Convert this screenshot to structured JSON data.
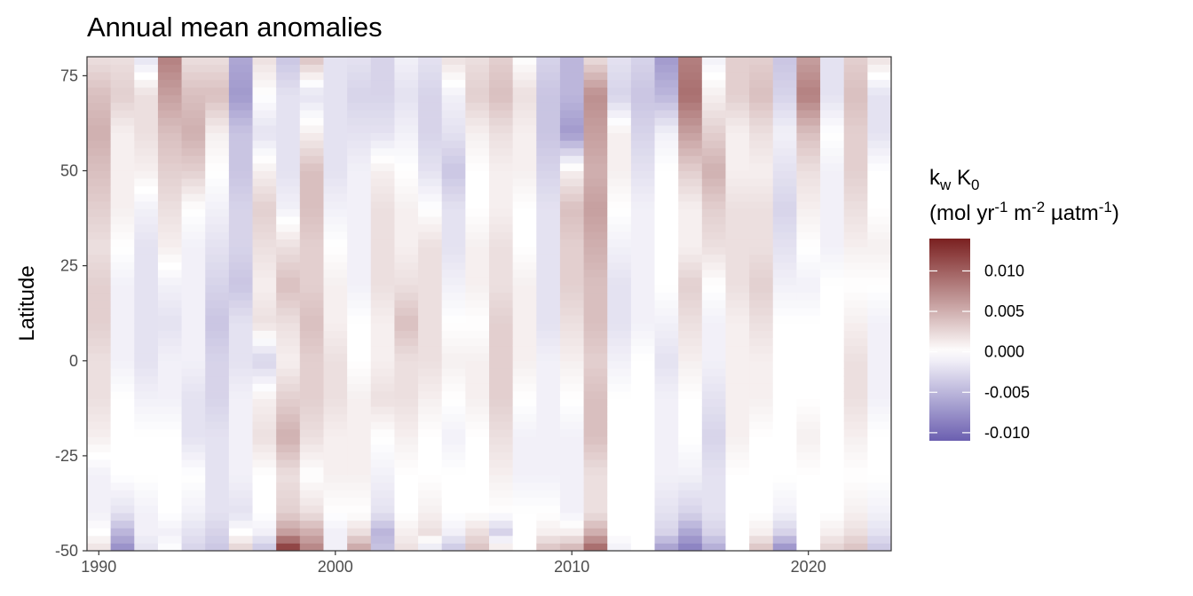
{
  "chart_data": {
    "type": "heatmap",
    "title": "Annual mean anomalies",
    "xlabel": "",
    "ylabel": "Latitude",
    "xlim": [
      1989.5,
      2023.5
    ],
    "ylim": [
      -50,
      80
    ],
    "x_ticks": [
      "1990",
      "2000",
      "2010",
      "2020"
    ],
    "y_ticks": [
      "75",
      "50",
      "25",
      "0",
      "-25",
      "-50"
    ],
    "years": [
      1990,
      1991,
      1992,
      1993,
      1994,
      1995,
      1996,
      1997,
      1998,
      1999,
      2000,
      2001,
      2002,
      2003,
      2004,
      2005,
      2006,
      2007,
      2008,
      2009,
      2010,
      2011,
      2012,
      2013,
      2014,
      2015,
      2016,
      2017,
      2018,
      2019,
      2020,
      2021,
      2022,
      2023
    ],
    "lat_knots": [
      -50,
      -45,
      -40,
      -30,
      -20,
      -10,
      0,
      10,
      20,
      30,
      40,
      50,
      60,
      70,
      80
    ],
    "anomaly_profiles": [
      [
        0.002,
        0.0,
        -0.001,
        -0.001,
        0.001,
        0.002,
        0.002,
        0.003,
        0.003,
        0.002,
        0.003,
        0.004,
        0.005,
        0.004,
        0.002
      ],
      [
        -0.008,
        -0.005,
        -0.002,
        0.0,
        0.0,
        0.0,
        -0.001,
        -0.001,
        -0.001,
        0.0,
        0.001,
        0.001,
        0.001,
        0.003,
        0.002
      ],
      [
        -0.002,
        -0.001,
        -0.001,
        0.0,
        0.0,
        -0.001,
        -0.002,
        -0.002,
        -0.002,
        -0.002,
        -0.001,
        0.001,
        0.002,
        0.002,
        -0.002
      ],
      [
        0.0,
        -0.001,
        0.0,
        0.0,
        0.0,
        -0.001,
        -0.001,
        -0.002,
        -0.001,
        0.001,
        0.002,
        0.003,
        0.004,
        0.006,
        0.008
      ],
      [
        -0.003,
        -0.002,
        -0.001,
        0.0,
        -0.002,
        -0.002,
        -0.001,
        -0.001,
        -0.001,
        -0.001,
        0.0,
        0.003,
        0.005,
        0.004,
        0.002
      ],
      [
        -0.004,
        -0.003,
        -0.002,
        -0.002,
        -0.002,
        -0.003,
        -0.003,
        -0.004,
        -0.003,
        -0.002,
        -0.001,
        0.0,
        0.001,
        0.004,
        0.002
      ],
      [
        0.003,
        0.0,
        -0.002,
        -0.001,
        -0.001,
        -0.001,
        -0.002,
        -0.002,
        -0.004,
        -0.003,
        -0.003,
        -0.004,
        -0.004,
        -0.007,
        -0.006
      ],
      [
        -0.004,
        -0.001,
        0.0,
        0.0,
        0.002,
        0.001,
        -0.003,
        0.002,
        0.001,
        0.002,
        0.003,
        0.001,
        -0.002,
        0.0,
        0.002
      ],
      [
        0.013,
        0.006,
        0.003,
        0.002,
        0.005,
        0.003,
        0.001,
        0.002,
        0.004,
        0.002,
        -0.001,
        -0.002,
        -0.002,
        -0.002,
        -0.004
      ],
      [
        0.008,
        0.005,
        0.002,
        0.0,
        0.002,
        0.003,
        0.003,
        0.004,
        0.003,
        0.003,
        0.004,
        0.004,
        0.001,
        -0.002,
        0.004
      ],
      [
        -0.001,
        -0.001,
        0.0,
        0.001,
        0.001,
        0.002,
        0.002,
        0.001,
        0.001,
        0.0,
        -0.001,
        -0.002,
        -0.002,
        -0.002,
        -0.002
      ],
      [
        0.006,
        0.002,
        0.0,
        0.001,
        0.001,
        0.001,
        0.0,
        0.0,
        -0.001,
        -0.001,
        -0.001,
        -0.001,
        -0.002,
        -0.003,
        -0.002
      ],
      [
        -0.004,
        -0.005,
        -0.002,
        -0.001,
        0.0,
        0.002,
        0.001,
        0.001,
        0.002,
        0.002,
        0.002,
        0.001,
        -0.002,
        -0.003,
        -0.003
      ],
      [
        0.002,
        0.001,
        0.0,
        0.0,
        0.001,
        0.002,
        0.002,
        0.004,
        0.002,
        0.001,
        0.001,
        0.0,
        -0.001,
        -0.002,
        -0.001
      ],
      [
        -0.002,
        0.002,
        0.001,
        0.0,
        0.0,
        0.001,
        0.002,
        0.002,
        0.002,
        0.002,
        0.0,
        -0.002,
        -0.003,
        -0.003,
        -0.002
      ],
      [
        -0.004,
        -0.001,
        0.0,
        0.0,
        -0.001,
        0.0,
        0.001,
        0.0,
        -0.001,
        -0.002,
        -0.002,
        -0.004,
        -0.002,
        -0.001,
        0.002
      ],
      [
        0.004,
        0.002,
        0.0,
        0.0,
        0.0,
        0.001,
        0.001,
        0.0,
        0.001,
        0.001,
        0.0,
        0.0,
        0.001,
        0.003,
        0.002
      ],
      [
        0.002,
        -0.003,
        0.0,
        0.001,
        0.002,
        0.003,
        0.003,
        0.003,
        0.002,
        0.002,
        0.001,
        0.001,
        0.002,
        0.004,
        0.003
      ],
      [
        0.0,
        0.0,
        0.0,
        -0.001,
        -0.001,
        0.0,
        0.001,
        0.001,
        0.001,
        0.0,
        0.0,
        0.001,
        0.001,
        0.002,
        0.0
      ],
      [
        0.004,
        0.001,
        0.0,
        -0.001,
        -0.001,
        -0.001,
        -0.001,
        -0.002,
        -0.002,
        -0.002,
        -0.002,
        -0.003,
        -0.004,
        -0.004,
        -0.003
      ],
      [
        0.005,
        0.001,
        -0.001,
        -0.001,
        -0.001,
        0.0,
        0.001,
        0.002,
        0.003,
        0.003,
        0.004,
        0.001,
        -0.007,
        -0.005,
        -0.005
      ],
      [
        0.01,
        0.005,
        0.002,
        0.002,
        0.004,
        0.004,
        0.003,
        0.004,
        0.004,
        0.005,
        0.006,
        0.005,
        0.006,
        0.007,
        0.002
      ],
      [
        -0.001,
        0.0,
        0.0,
        0.0,
        0.0,
        0.0,
        -0.001,
        -0.002,
        -0.002,
        -0.001,
        0.0,
        0.001,
        0.001,
        -0.003,
        -0.002
      ],
      [
        0.0,
        0.0,
        0.0,
        0.0,
        0.0,
        0.0,
        0.0,
        -0.001,
        -0.001,
        -0.001,
        -0.001,
        -0.002,
        -0.003,
        -0.004,
        -0.003
      ],
      [
        -0.007,
        -0.003,
        -0.002,
        -0.001,
        -0.001,
        -0.001,
        -0.002,
        -0.001,
        0.0,
        0.0,
        0.0,
        0.0,
        -0.001,
        -0.005,
        -0.007
      ],
      [
        -0.009,
        -0.006,
        -0.003,
        -0.001,
        0.0,
        0.0,
        0.001,
        0.002,
        0.003,
        0.001,
        0.001,
        0.003,
        0.006,
        0.009,
        0.008
      ],
      [
        -0.006,
        -0.003,
        -0.002,
        -0.002,
        -0.003,
        -0.002,
        -0.001,
        -0.001,
        0.0,
        0.002,
        0.003,
        0.005,
        0.003,
        0.001,
        -0.001
      ],
      [
        0.0,
        0.0,
        0.0,
        0.0,
        0.001,
        0.001,
        0.001,
        0.001,
        0.002,
        0.002,
        0.002,
        0.001,
        0.001,
        0.003,
        0.003
      ],
      [
        0.004,
        0.001,
        0.0,
        0.0,
        0.0,
        0.001,
        0.001,
        0.002,
        0.003,
        0.002,
        0.002,
        0.001,
        0.002,
        0.004,
        0.003
      ],
      [
        -0.008,
        -0.003,
        -0.001,
        0.0,
        0.0,
        0.0,
        0.0,
        0.0,
        -0.001,
        -0.002,
        -0.003,
        -0.002,
        -0.001,
        -0.003,
        -0.004
      ],
      [
        0.0,
        0.0,
        0.0,
        0.0,
        0.001,
        0.0,
        0.0,
        0.0,
        -0.001,
        0.0,
        0.001,
        0.002,
        0.004,
        0.008,
        0.006
      ],
      [
        0.003,
        0.001,
        0.0,
        0.0,
        0.0,
        0.0,
        0.0,
        0.0,
        0.0,
        -0.001,
        -0.001,
        -0.001,
        0.0,
        -0.002,
        -0.002
      ],
      [
        0.004,
        0.002,
        0.001,
        0.0,
        0.001,
        0.002,
        0.002,
        0.001,
        0.0,
        0.001,
        0.002,
        0.003,
        0.003,
        0.004,
        0.003
      ],
      [
        -0.004,
        -0.002,
        -0.001,
        0.0,
        0.0,
        -0.001,
        -0.001,
        -0.001,
        0.0,
        0.001,
        0.0,
        0.0,
        -0.002,
        -0.002,
        0.002
      ]
    ],
    "legend": {
      "title_parts": [
        "k",
        "w",
        " K",
        "0"
      ],
      "units_parts": [
        "(mol yr",
        "-1",
        " m",
        "-2",
        " µatm",
        "-1",
        ")"
      ],
      "ticks": [
        0.01,
        0.005,
        0.0,
        -0.005,
        -0.01
      ],
      "tick_labels": [
        "0.010",
        "0.005",
        "0.000",
        "-0.005",
        "-0.010"
      ],
      "range": [
        -0.011,
        0.014
      ],
      "placement": "right"
    },
    "colors": {
      "high": "#7a2020",
      "mid": "#ffffff",
      "low": "#6b5fb0",
      "grid": "#ebebeb",
      "panel_border": "#333333"
    }
  }
}
